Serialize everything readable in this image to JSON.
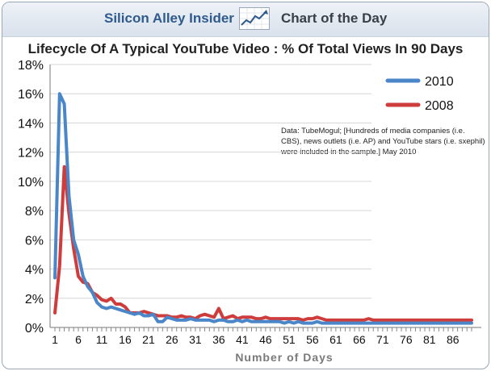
{
  "header": {
    "brand": "Silicon Alley Insider",
    "brand_icon": "trend-chart-icon",
    "section": "Chart of the Day"
  },
  "colors": {
    "series_2010": "#4a86c8",
    "series_2008": "#cf3c3c",
    "frame": "#9aa7b8"
  },
  "source_note": "Data: TubeMogul; [Hundreds of media companies (i.e. CBS), news outlets (i.e. AP) and YouTube stars (i.e. sxephil) were included in the sample.] May 2010",
  "chart_data": {
    "type": "line",
    "title": "Lifecycle Of A Typical YouTube Video : % Of Total Views In 90 Days",
    "xlabel": "Number of Days",
    "ylabel": "",
    "xlim": [
      1,
      90
    ],
    "ylim": [
      0,
      18
    ],
    "x_ticks": [
      1,
      6,
      11,
      16,
      21,
      26,
      31,
      36,
      41,
      46,
      51,
      56,
      61,
      66,
      71,
      76,
      81,
      86
    ],
    "y_ticks": [
      "0%",
      "2%",
      "4%",
      "6%",
      "8%",
      "10%",
      "12%",
      "14%",
      "16%",
      "18%"
    ],
    "legend_position": "top-right",
    "grid": "horizontal",
    "series": [
      {
        "name": "2010",
        "values": [
          3.4,
          16.0,
          15.3,
          9.0,
          6.0,
          5.0,
          3.5,
          2.8,
          2.4,
          1.7,
          1.4,
          1.3,
          1.4,
          1.3,
          1.2,
          1.1,
          1.0,
          0.9,
          1.0,
          0.8,
          0.8,
          0.9,
          0.4,
          0.4,
          0.7,
          0.6,
          0.5,
          0.5,
          0.5,
          0.6,
          0.5,
          0.5,
          0.5,
          0.5,
          0.4,
          0.5,
          0.5,
          0.4,
          0.4,
          0.5,
          0.4,
          0.5,
          0.4,
          0.4,
          0.4,
          0.4,
          0.4,
          0.4,
          0.4,
          0.3,
          0.4,
          0.3,
          0.4,
          0.3,
          0.3,
          0.3,
          0.4,
          0.3,
          0.3,
          0.3,
          0.3,
          0.3,
          0.3,
          0.3,
          0.3,
          0.3,
          0.3,
          0.3,
          0.3,
          0.3,
          0.3,
          0.3,
          0.3,
          0.3,
          0.3,
          0.3,
          0.3,
          0.3,
          0.3,
          0.3,
          0.3,
          0.3,
          0.3,
          0.3,
          0.3,
          0.3,
          0.3,
          0.3,
          0.3,
          0.3
        ]
      },
      {
        "name": "2008",
        "values": [
          1.0,
          4.2,
          11.0,
          7.8,
          5.4,
          3.5,
          3.1,
          3.0,
          2.4,
          2.2,
          1.9,
          1.8,
          2.0,
          1.6,
          1.6,
          1.4,
          1.0,
          1.0,
          1.0,
          1.1,
          1.0,
          0.9,
          0.8,
          0.8,
          0.8,
          0.7,
          0.7,
          0.8,
          0.7,
          0.7,
          0.6,
          0.8,
          0.9,
          0.8,
          0.7,
          1.3,
          0.6,
          0.7,
          0.8,
          0.6,
          0.7,
          0.7,
          0.7,
          0.6,
          0.6,
          0.7,
          0.6,
          0.6,
          0.6,
          0.6,
          0.6,
          0.6,
          0.6,
          0.5,
          0.6,
          0.6,
          0.7,
          0.6,
          0.5,
          0.5,
          0.5,
          0.5,
          0.5,
          0.5,
          0.5,
          0.5,
          0.5,
          0.6,
          0.5,
          0.5,
          0.5,
          0.5,
          0.5,
          0.5,
          0.5,
          0.5,
          0.5,
          0.5,
          0.5,
          0.5,
          0.5,
          0.5,
          0.5,
          0.5,
          0.5,
          0.5,
          0.5,
          0.5,
          0.5,
          0.5
        ]
      }
    ]
  }
}
